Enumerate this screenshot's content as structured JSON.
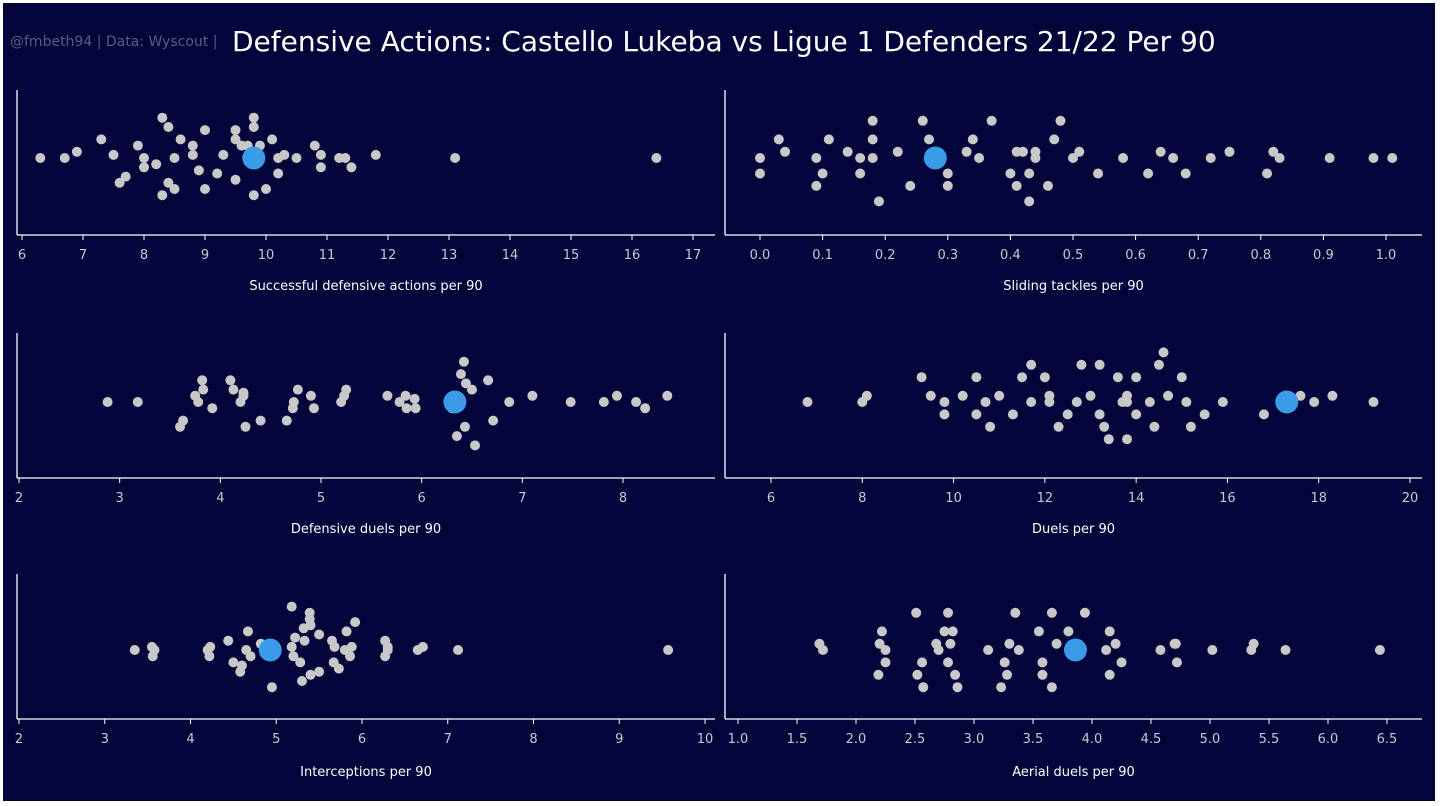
{
  "header": {
    "credit": "@fmbeth94 | Data: Wyscout |",
    "title": "Defensive Actions: Castello Lukeba vs Ligue 1 Defenders 21/22 Per 90"
  },
  "colors": {
    "background": "#02043a",
    "point": "#c8c8c8",
    "highlight": "#3a9be8",
    "axis": "#ffffff"
  },
  "chart_data": [
    {
      "type": "scatter",
      "xlabel": "Successful defensive actions per 90",
      "xlim": [
        6,
        17
      ],
      "ticks": [
        6,
        7,
        8,
        9,
        10,
        11,
        12,
        13,
        14,
        15,
        16,
        17
      ],
      "highlight": {
        "x": 9.8,
        "y": 0
      },
      "points": [
        [
          6.3,
          0
        ],
        [
          6.7,
          0
        ],
        [
          6.9,
          0.1
        ],
        [
          7.3,
          0.3
        ],
        [
          7.5,
          0.05
        ],
        [
          7.6,
          -0.4
        ],
        [
          7.7,
          -0.3
        ],
        [
          7.9,
          0.2
        ],
        [
          8.0,
          -0.15
        ],
        [
          8.0,
          0
        ],
        [
          8.3,
          0.65
        ],
        [
          8.4,
          0.5
        ],
        [
          8.5,
          0
        ],
        [
          8.2,
          -0.1
        ],
        [
          8.6,
          0.3
        ],
        [
          8.8,
          0.2
        ],
        [
          8.8,
          0.05
        ],
        [
          8.9,
          -0.2
        ],
        [
          9.0,
          0.45
        ],
        [
          9.2,
          -0.25
        ],
        [
          9.3,
          0.05
        ],
        [
          9.5,
          0.3
        ],
        [
          9.5,
          0.45
        ],
        [
          9.6,
          0.2
        ],
        [
          9.7,
          0.2
        ],
        [
          9.8,
          0.65
        ],
        [
          9.8,
          0.5
        ],
        [
          9.9,
          0.2
        ],
        [
          10.1,
          0.3
        ],
        [
          10.2,
          0
        ],
        [
          10.3,
          0.05
        ],
        [
          8.4,
          -0.4
        ],
        [
          8.5,
          -0.5
        ],
        [
          8.3,
          -0.6
        ],
        [
          9.0,
          -0.5
        ],
        [
          9.5,
          -0.35
        ],
        [
          9.8,
          -0.6
        ],
        [
          10.0,
          -0.5
        ],
        [
          10.2,
          -0.25
        ],
        [
          10.5,
          0
        ],
        [
          10.8,
          0.2
        ],
        [
          10.9,
          0.05
        ],
        [
          10.9,
          -0.15
        ],
        [
          11.2,
          0
        ],
        [
          11.3,
          0
        ],
        [
          11.4,
          -0.15
        ],
        [
          11.8,
          0.05
        ],
        [
          13.1,
          0
        ],
        [
          16.4,
          0
        ]
      ]
    },
    {
      "type": "scatter",
      "xlabel": "Sliding tackles per 90",
      "xlim": [
        -0.02,
        1.05
      ],
      "ticks": [
        0.0,
        0.1,
        0.2,
        0.3,
        0.4,
        0.5,
        0.6,
        0.7,
        0.8,
        0.9,
        1.0
      ],
      "highlight": {
        "x": 0.28,
        "y": 0
      },
      "points": [
        [
          0.0,
          0
        ],
        [
          0.0,
          -0.25
        ],
        [
          0.03,
          0.3
        ],
        [
          0.04,
          0.1
        ],
        [
          0.09,
          0
        ],
        [
          0.09,
          -0.45
        ],
        [
          0.1,
          -0.25
        ],
        [
          0.11,
          0.3
        ],
        [
          0.14,
          0.1
        ],
        [
          0.16,
          0
        ],
        [
          0.16,
          -0.25
        ],
        [
          0.18,
          0.6
        ],
        [
          0.18,
          0.3
        ],
        [
          0.18,
          0
        ],
        [
          0.19,
          -0.7
        ],
        [
          0.22,
          0.1
        ],
        [
          0.24,
          -0.45
        ],
        [
          0.26,
          0.6
        ],
        [
          0.27,
          0.3
        ],
        [
          0.3,
          -0.25
        ],
        [
          0.3,
          -0.45
        ],
        [
          0.33,
          0.1
        ],
        [
          0.34,
          0.3
        ],
        [
          0.35,
          0
        ],
        [
          0.37,
          0.6
        ],
        [
          0.4,
          -0.25
        ],
        [
          0.41,
          -0.45
        ],
        [
          0.41,
          0.1
        ],
        [
          0.42,
          0.1
        ],
        [
          0.43,
          -0.25
        ],
        [
          0.43,
          -0.7
        ],
        [
          0.44,
          0
        ],
        [
          0.44,
          0.1
        ],
        [
          0.46,
          -0.45
        ],
        [
          0.47,
          0.3
        ],
        [
          0.48,
          0.6
        ],
        [
          0.5,
          0
        ],
        [
          0.51,
          0.1
        ],
        [
          0.54,
          -0.25
        ],
        [
          0.58,
          0
        ],
        [
          0.62,
          -0.25
        ],
        [
          0.64,
          0.1
        ],
        [
          0.66,
          0
        ],
        [
          0.68,
          -0.25
        ],
        [
          0.72,
          0
        ],
        [
          0.75,
          0.1
        ],
        [
          0.81,
          -0.25
        ],
        [
          0.82,
          0.1
        ],
        [
          0.83,
          0
        ],
        [
          0.91,
          0
        ],
        [
          0.98,
          0
        ],
        [
          1.01,
          0
        ]
      ]
    },
    {
      "type": "scatter",
      "xlabel": "Defensive duels per 90",
      "xlim": [
        2,
        8.9
      ],
      "ticks": [
        2,
        3,
        4,
        5,
        6,
        7,
        8
      ],
      "highlight": {
        "x": 6.33,
        "y": 0
      },
      "points": [
        [
          2.88,
          0
        ],
        [
          3.18,
          0
        ],
        [
          3.6,
          -0.4
        ],
        [
          3.63,
          -0.3
        ],
        [
          3.75,
          0.1
        ],
        [
          3.78,
          0
        ],
        [
          3.82,
          0.35
        ],
        [
          3.83,
          0.2
        ],
        [
          3.92,
          -0.1
        ],
        [
          4.1,
          0.35
        ],
        [
          4.13,
          0.2
        ],
        [
          4.2,
          0
        ],
        [
          4.23,
          0.1
        ],
        [
          4.23,
          0.15
        ],
        [
          4.25,
          -0.4
        ],
        [
          4.4,
          -0.3
        ],
        [
          4.66,
          -0.3
        ],
        [
          4.72,
          -0.1
        ],
        [
          4.73,
          0
        ],
        [
          4.77,
          0.2
        ],
        [
          4.9,
          0.1
        ],
        [
          4.93,
          -0.1
        ],
        [
          5.2,
          0
        ],
        [
          5.23,
          0.1
        ],
        [
          5.25,
          0.2
        ],
        [
          5.66,
          0.1
        ],
        [
          5.78,
          0
        ],
        [
          5.84,
          0.1
        ],
        [
          5.85,
          -0.1
        ],
        [
          5.93,
          0.05
        ],
        [
          5.94,
          -0.1
        ],
        [
          6.3,
          -0.1
        ],
        [
          6.35,
          -0.55
        ],
        [
          6.39,
          0.45
        ],
        [
          6.42,
          0.65
        ],
        [
          6.44,
          0.3
        ],
        [
          6.43,
          -0.4
        ],
        [
          6.5,
          0.2
        ],
        [
          6.53,
          -0.7
        ],
        [
          6.66,
          0.35
        ],
        [
          6.71,
          -0.3
        ],
        [
          6.87,
          0
        ],
        [
          7.1,
          0.1
        ],
        [
          7.48,
          0
        ],
        [
          7.81,
          0
        ],
        [
          7.94,
          0.1
        ],
        [
          8.13,
          0
        ],
        [
          8.22,
          -0.1
        ],
        [
          8.44,
          0.1
        ]
      ]
    },
    {
      "type": "scatter",
      "xlabel": "Duels per 90",
      "xlim": [
        5,
        20.3
      ],
      "ticks": [
        6,
        8,
        10,
        12,
        14,
        16,
        18,
        20
      ],
      "highlight": {
        "x": 17.3,
        "y": 0
      },
      "points": [
        [
          6.8,
          0
        ],
        [
          8.0,
          0
        ],
        [
          8.1,
          0.1
        ],
        [
          9.3,
          0.4
        ],
        [
          9.5,
          0.1
        ],
        [
          9.8,
          0
        ],
        [
          9.8,
          -0.2
        ],
        [
          10.2,
          0.1
        ],
        [
          10.5,
          0.4
        ],
        [
          10.5,
          -0.2
        ],
        [
          10.7,
          0
        ],
        [
          10.8,
          -0.4
        ],
        [
          11.0,
          0.1
        ],
        [
          11.3,
          -0.2
        ],
        [
          11.5,
          0.4
        ],
        [
          11.7,
          0.6
        ],
        [
          11.7,
          0
        ],
        [
          12.0,
          0.4
        ],
        [
          12.1,
          0.1
        ],
        [
          12.1,
          0
        ],
        [
          12.3,
          -0.4
        ],
        [
          12.5,
          -0.2
        ],
        [
          12.7,
          0
        ],
        [
          12.8,
          0.6
        ],
        [
          13.0,
          0.1
        ],
        [
          13.2,
          0.6
        ],
        [
          13.2,
          -0.2
        ],
        [
          13.3,
          -0.4
        ],
        [
          13.4,
          -0.6
        ],
        [
          13.6,
          0.4
        ],
        [
          13.7,
          0
        ],
        [
          13.8,
          0.1
        ],
        [
          13.8,
          0
        ],
        [
          13.8,
          -0.6
        ],
        [
          14.0,
          0.4
        ],
        [
          14.0,
          -0.2
        ],
        [
          14.3,
          0
        ],
        [
          14.4,
          -0.4
        ],
        [
          14.5,
          0.6
        ],
        [
          14.6,
          0.8
        ],
        [
          14.7,
          0.1
        ],
        [
          15.0,
          0.4
        ],
        [
          15.1,
          0
        ],
        [
          15.2,
          -0.4
        ],
        [
          15.5,
          -0.2
        ],
        [
          15.9,
          0
        ],
        [
          16.8,
          -0.2
        ],
        [
          17.6,
          0.1
        ],
        [
          17.9,
          0
        ],
        [
          18.3,
          0.1
        ],
        [
          19.2,
          0
        ]
      ]
    },
    {
      "type": "scatter",
      "xlabel": "Interceptions per 90",
      "xlim": [
        2,
        10.1
      ],
      "ticks": [
        2,
        3,
        4,
        5,
        6,
        7,
        8,
        9,
        10
      ],
      "highlight": {
        "x": 4.93,
        "y": 0
      },
      "points": [
        [
          3.35,
          0
        ],
        [
          3.55,
          0.05
        ],
        [
          3.56,
          -0.1
        ],
        [
          3.58,
          0
        ],
        [
          4.2,
          0
        ],
        [
          4.22,
          -0.1
        ],
        [
          4.23,
          0.05
        ],
        [
          4.44,
          0.15
        ],
        [
          4.5,
          -0.2
        ],
        [
          4.58,
          -0.35
        ],
        [
          4.6,
          -0.25
        ],
        [
          4.65,
          0
        ],
        [
          4.67,
          0.3
        ],
        [
          4.7,
          -0.1
        ],
        [
          4.82,
          0.1
        ],
        [
          4.95,
          -0.6
        ],
        [
          5.18,
          0.7
        ],
        [
          5.18,
          0.05
        ],
        [
          5.2,
          -0.1
        ],
        [
          5.22,
          0.2
        ],
        [
          5.28,
          -0.2
        ],
        [
          5.3,
          -0.5
        ],
        [
          5.32,
          0.35
        ],
        [
          5.33,
          0.15
        ],
        [
          5.39,
          0.6
        ],
        [
          5.39,
          0.5
        ],
        [
          5.4,
          0.4
        ],
        [
          5.4,
          -0.4
        ],
        [
          5.5,
          -0.35
        ],
        [
          5.5,
          0.25
        ],
        [
          5.65,
          0.15
        ],
        [
          5.67,
          -0.2
        ],
        [
          5.68,
          0.05
        ],
        [
          5.73,
          -0.3
        ],
        [
          5.8,
          0
        ],
        [
          5.82,
          0.3
        ],
        [
          5.86,
          -0.1
        ],
        [
          5.88,
          0.05
        ],
        [
          5.92,
          0.45
        ],
        [
          6.27,
          -0.1
        ],
        [
          6.27,
          0.15
        ],
        [
          6.3,
          0
        ],
        [
          6.3,
          0.05
        ],
        [
          6.65,
          0
        ],
        [
          6.71,
          0.05
        ],
        [
          7.12,
          0
        ],
        [
          9.57,
          0
        ]
      ]
    },
    {
      "type": "scatter",
      "xlabel": "Aerial duels per 90",
      "xlim": [
        0.97,
        6.78
      ],
      "ticks": [
        1.0,
        1.5,
        2.0,
        2.5,
        3.0,
        3.5,
        4.0,
        4.5,
        5.0,
        5.5,
        6.0,
        6.5
      ],
      "highlight": {
        "x": 3.86,
        "y": 0
      },
      "points": [
        [
          1.69,
          0.1
        ],
        [
          1.72,
          0
        ],
        [
          2.19,
          -0.4
        ],
        [
          2.2,
          0.1
        ],
        [
          2.22,
          0.3
        ],
        [
          2.25,
          -0.2
        ],
        [
          2.25,
          0
        ],
        [
          2.51,
          0.6
        ],
        [
          2.52,
          -0.4
        ],
        [
          2.56,
          -0.2
        ],
        [
          2.57,
          -0.6
        ],
        [
          2.68,
          0.1
        ],
        [
          2.7,
          0
        ],
        [
          2.75,
          0.3
        ],
        [
          2.78,
          0.6
        ],
        [
          2.78,
          -0.2
        ],
        [
          2.8,
          0.1
        ],
        [
          2.82,
          0.3
        ],
        [
          2.84,
          -0.4
        ],
        [
          2.86,
          -0.6
        ],
        [
          3.12,
          0
        ],
        [
          3.23,
          -0.6
        ],
        [
          3.26,
          -0.2
        ],
        [
          3.28,
          -0.4
        ],
        [
          3.3,
          0.1
        ],
        [
          3.35,
          0.6
        ],
        [
          3.38,
          0
        ],
        [
          3.55,
          0.3
        ],
        [
          3.58,
          -0.4
        ],
        [
          3.58,
          -0.2
        ],
        [
          3.66,
          0.6
        ],
        [
          3.66,
          -0.6
        ],
        [
          3.7,
          0.1
        ],
        [
          3.8,
          0.3
        ],
        [
          3.94,
          0.6
        ],
        [
          4.12,
          0
        ],
        [
          4.15,
          0.3
        ],
        [
          4.15,
          -0.4
        ],
        [
          4.2,
          0.1
        ],
        [
          4.25,
          -0.2
        ],
        [
          4.58,
          0
        ],
        [
          4.7,
          0.1
        ],
        [
          4.71,
          0.1
        ],
        [
          4.72,
          -0.2
        ],
        [
          5.02,
          0
        ],
        [
          5.35,
          0
        ],
        [
          5.37,
          0.1
        ],
        [
          5.64,
          0
        ],
        [
          6.44,
          0
        ]
      ]
    }
  ]
}
